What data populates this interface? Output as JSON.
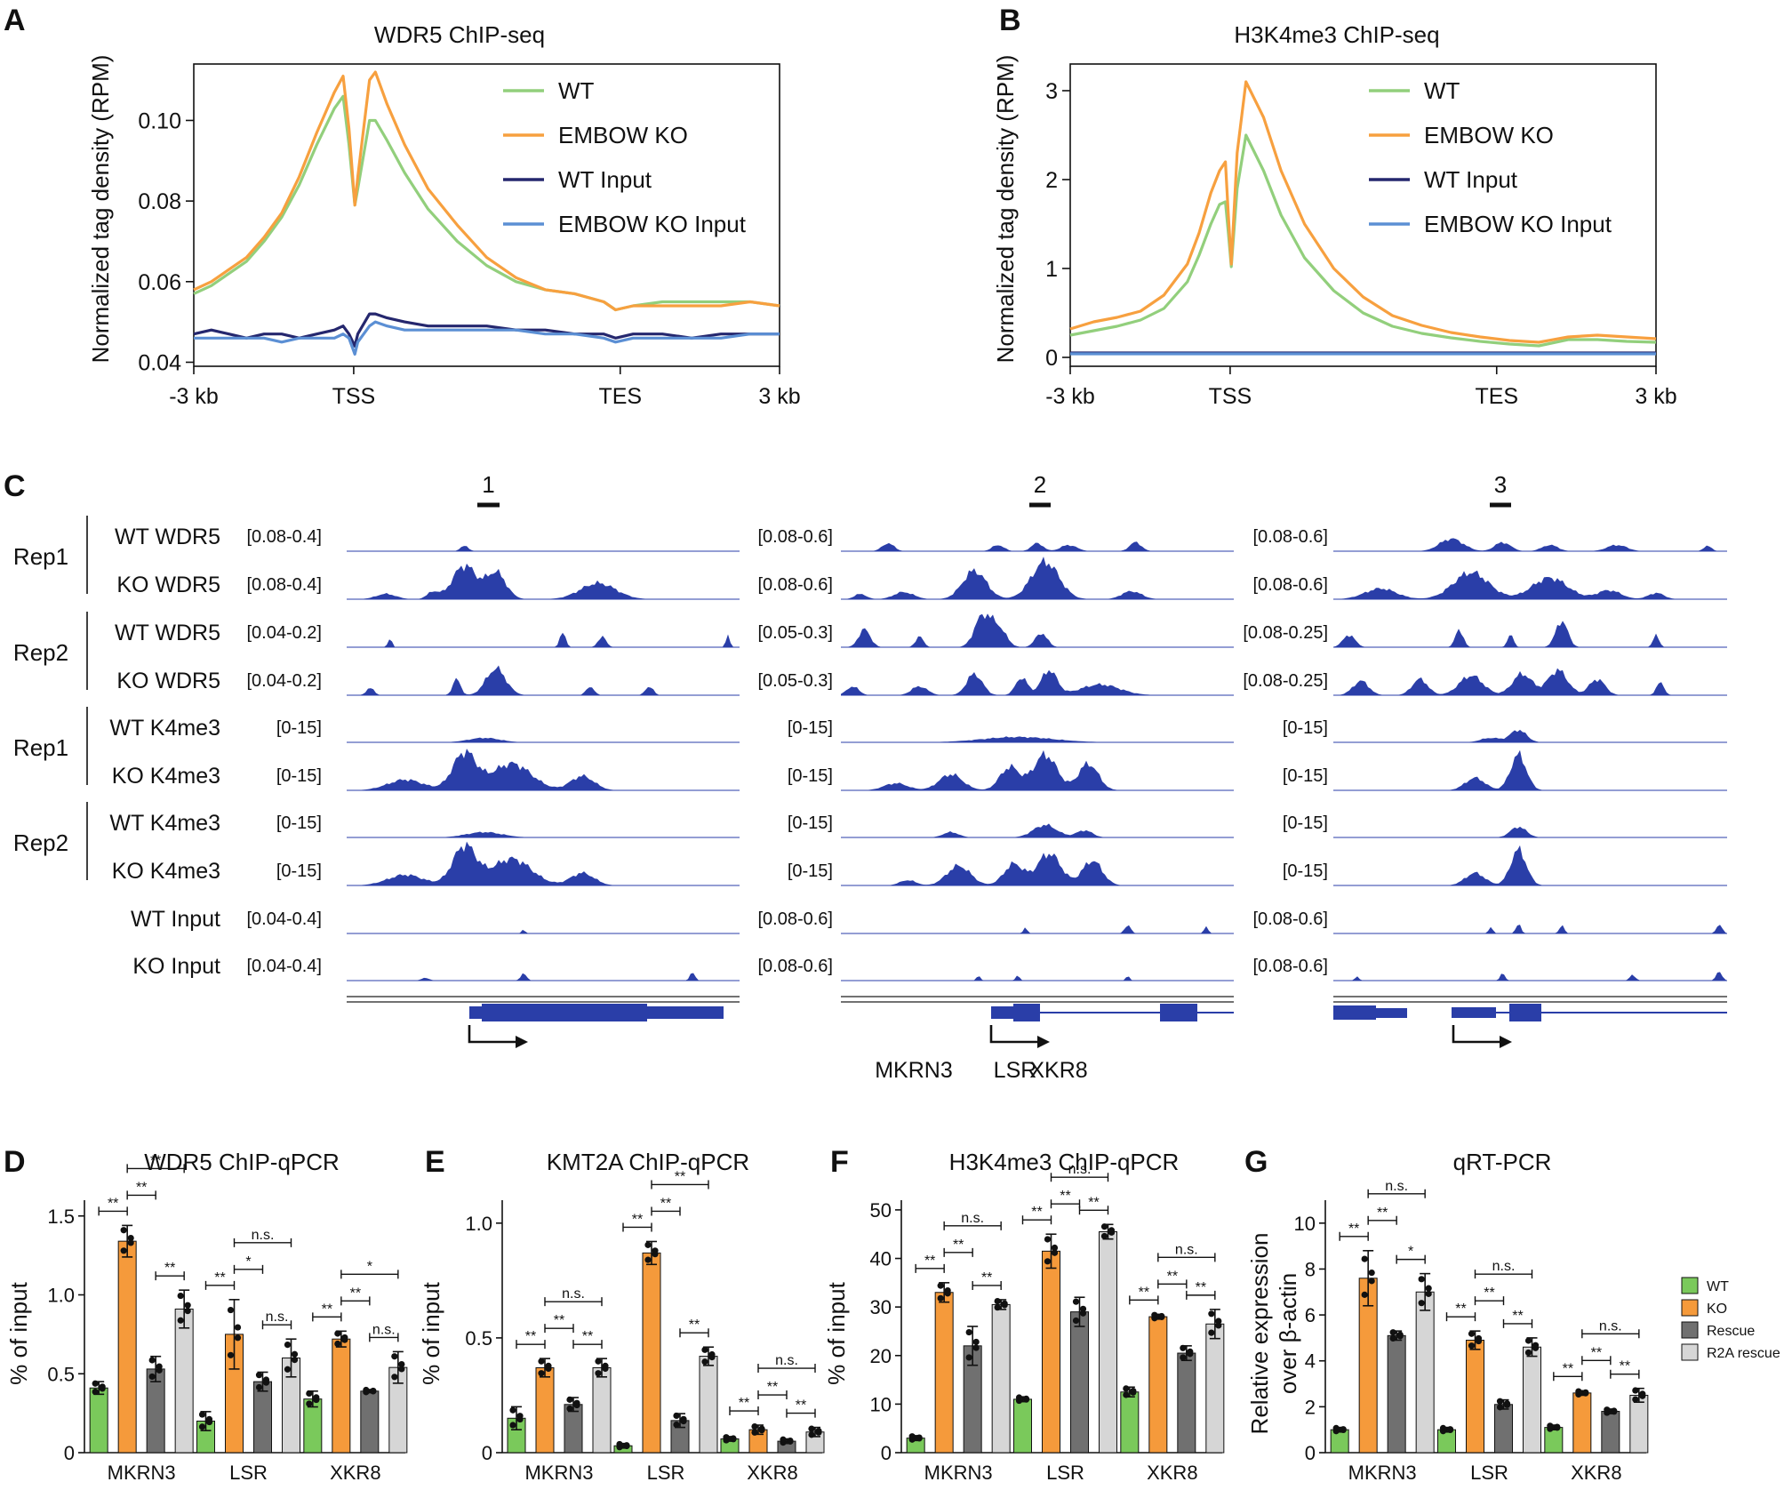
{
  "colors": {
    "wt": "#92cf7c",
    "ko": "#f7a03f",
    "wt_input": "#25276e",
    "ko_input": "#5b8fd4",
    "bar_wt": "#7ac95b",
    "bar_ko": "#f59a3b",
    "bar_rescue": "#707070",
    "bar_r2a": "#d6d6d6",
    "track": "#2a3ea8"
  },
  "panels": {
    "A": {
      "label": "A",
      "title": "WDR5 ChIP-seq",
      "ylabel": "Normalized tag density (RPM)",
      "yticks": [
        "0.04",
        "0.06",
        "0.08",
        "0.10"
      ],
      "xticks": [
        "-3 kb",
        "TSS",
        "TES",
        "3 kb"
      ]
    },
    "B": {
      "label": "B",
      "title": "H3K4me3 ChIP-seq",
      "ylabel": "Normalized tag density (RPM)",
      "yticks": [
        "0",
        "1",
        "2",
        "3"
      ],
      "xticks": [
        "-3 kb",
        "TSS",
        "TES",
        "3 kb"
      ]
    },
    "C": {
      "label": "C"
    },
    "D": {
      "label": "D",
      "title": "WDR5 ChIP-qPCR"
    },
    "E": {
      "label": "E",
      "title": "KMT2A ChIP-qPCR"
    },
    "F": {
      "label": "F",
      "title": "H3K4me3 ChIP-qPCR"
    },
    "G": {
      "label": "G",
      "title": "qRT-PCR"
    }
  },
  "legend_ab": [
    "WT",
    "EMBOW KO",
    "WT Input",
    "EMBOW KO Input"
  ],
  "chart_data": [
    {
      "type": "line",
      "id": "A",
      "title": "WDR5 ChIP-seq",
      "xlabel": "",
      "ylabel": "Normalized tag density (RPM)",
      "x_positions": [
        "-3 kb",
        "TSS",
        "TES",
        "3 kb"
      ],
      "ylim": [
        0.039,
        0.114
      ],
      "x": [
        0,
        0.03,
        0.06,
        0.09,
        0.12,
        0.15,
        0.18,
        0.21,
        0.24,
        0.255,
        0.265,
        0.275,
        0.28,
        0.3,
        0.31,
        0.33,
        0.36,
        0.4,
        0.45,
        0.5,
        0.55,
        0.6,
        0.65,
        0.7,
        0.72,
        0.75,
        0.8,
        0.85,
        0.9,
        0.95,
        1.0
      ],
      "series": [
        {
          "name": "WT",
          "values": [
            0.057,
            0.059,
            0.062,
            0.065,
            0.07,
            0.076,
            0.084,
            0.094,
            0.103,
            0.106,
            0.094,
            0.079,
            0.083,
            0.1,
            0.1,
            0.095,
            0.087,
            0.078,
            0.07,
            0.064,
            0.06,
            0.058,
            0.057,
            0.055,
            0.053,
            0.054,
            0.055,
            0.055,
            0.055,
            0.055,
            0.054
          ]
        },
        {
          "name": "EMBOW KO",
          "values": [
            0.058,
            0.06,
            0.063,
            0.066,
            0.071,
            0.077,
            0.086,
            0.097,
            0.107,
            0.111,
            0.098,
            0.079,
            0.086,
            0.11,
            0.112,
            0.104,
            0.094,
            0.083,
            0.074,
            0.066,
            0.061,
            0.058,
            0.057,
            0.055,
            0.053,
            0.054,
            0.054,
            0.054,
            0.054,
            0.055,
            0.054
          ]
        },
        {
          "name": "WT Input",
          "values": [
            0.047,
            0.048,
            0.047,
            0.046,
            0.047,
            0.047,
            0.046,
            0.047,
            0.048,
            0.049,
            0.047,
            0.044,
            0.047,
            0.052,
            0.052,
            0.051,
            0.05,
            0.049,
            0.049,
            0.049,
            0.048,
            0.048,
            0.047,
            0.047,
            0.046,
            0.047,
            0.047,
            0.046,
            0.047,
            0.047,
            0.047
          ]
        },
        {
          "name": "EMBOW KO Input",
          "values": [
            0.046,
            0.046,
            0.046,
            0.046,
            0.046,
            0.045,
            0.046,
            0.046,
            0.046,
            0.047,
            0.046,
            0.042,
            0.045,
            0.049,
            0.05,
            0.049,
            0.048,
            0.048,
            0.048,
            0.048,
            0.048,
            0.047,
            0.047,
            0.046,
            0.045,
            0.046,
            0.046,
            0.046,
            0.046,
            0.047,
            0.047
          ]
        }
      ]
    },
    {
      "type": "line",
      "id": "B",
      "title": "H3K4me3 ChIP-seq",
      "xlabel": "",
      "ylabel": "Normalized tag density (RPM)",
      "x_positions": [
        "-3 kb",
        "TSS",
        "TES",
        "3 kb"
      ],
      "ylim": [
        -0.1,
        3.3
      ],
      "x": [
        0,
        0.04,
        0.08,
        0.12,
        0.16,
        0.2,
        0.22,
        0.24,
        0.255,
        0.265,
        0.27,
        0.275,
        0.285,
        0.3,
        0.33,
        0.36,
        0.4,
        0.45,
        0.5,
        0.55,
        0.6,
        0.65,
        0.7,
        0.75,
        0.8,
        0.85,
        0.9,
        0.95,
        1.0
      ],
      "series": [
        {
          "name": "WT",
          "values": [
            0.25,
            0.3,
            0.35,
            0.42,
            0.55,
            0.85,
            1.15,
            1.5,
            1.72,
            1.75,
            1.4,
            1.02,
            1.9,
            2.5,
            2.1,
            1.6,
            1.12,
            0.75,
            0.5,
            0.35,
            0.27,
            0.22,
            0.18,
            0.15,
            0.13,
            0.2,
            0.2,
            0.18,
            0.17
          ]
        },
        {
          "name": "EMBOW KO",
          "values": [
            0.32,
            0.4,
            0.45,
            0.52,
            0.7,
            1.05,
            1.4,
            1.85,
            2.1,
            2.2,
            1.6,
            1.05,
            2.3,
            3.1,
            2.7,
            2.1,
            1.5,
            1.0,
            0.68,
            0.47,
            0.36,
            0.28,
            0.23,
            0.19,
            0.17,
            0.23,
            0.25,
            0.23,
            0.21
          ]
        },
        {
          "name": "WT Input",
          "values": [
            0.05,
            0.05,
            0.05,
            0.05,
            0.05,
            0.05,
            0.05,
            0.05,
            0.05,
            0.05,
            0.05,
            0.05,
            0.05,
            0.05,
            0.05,
            0.05,
            0.05,
            0.05,
            0.05,
            0.05,
            0.05,
            0.05,
            0.05,
            0.05,
            0.05,
            0.05,
            0.05,
            0.05,
            0.05
          ]
        },
        {
          "name": "EMBOW KO Input",
          "values": [
            0.04,
            0.04,
            0.04,
            0.04,
            0.04,
            0.04,
            0.04,
            0.04,
            0.04,
            0.04,
            0.04,
            0.04,
            0.04,
            0.04,
            0.04,
            0.04,
            0.04,
            0.04,
            0.04,
            0.04,
            0.04,
            0.04,
            0.04,
            0.04,
            0.04,
            0.04,
            0.04,
            0.04,
            0.04
          ]
        }
      ]
    },
    {
      "type": "genome_tracks",
      "id": "C",
      "region_labels": [
        "1",
        "2",
        "3"
      ],
      "genes": [
        "MKRN3",
        "LSR",
        "XKR8"
      ],
      "rep_labels": [
        "Rep1",
        "Rep2",
        "Rep1",
        "Rep2"
      ],
      "tracks": [
        {
          "name": "WT WDR5",
          "ranges": [
            "[0.08-0.4]",
            "[0.08-0.6]",
            "[0.08-0.6]"
          ]
        },
        {
          "name": "KO WDR5",
          "ranges": [
            "[0.08-0.4]",
            "[0.08-0.6]",
            "[0.08-0.6]"
          ]
        },
        {
          "name": "WT WDR5",
          "ranges": [
            "[0.04-0.2]",
            "[0.05-0.3]",
            "[0.08-0.25]"
          ]
        },
        {
          "name": "KO WDR5",
          "ranges": [
            "[0.04-0.2]",
            "[0.05-0.3]",
            "[0.08-0.25]"
          ]
        },
        {
          "name": "WT K4me3",
          "ranges": [
            "[0-15]",
            "[0-15]",
            "[0-15]"
          ]
        },
        {
          "name": "KO K4me3",
          "ranges": [
            "[0-15]",
            "[0-15]",
            "[0-15]"
          ]
        },
        {
          "name": "WT K4me3",
          "ranges": [
            "[0-15]",
            "[0-15]",
            "[0-15]"
          ]
        },
        {
          "name": "KO K4me3",
          "ranges": [
            "[0-15]",
            "[0-15]",
            "[0-15]"
          ]
        },
        {
          "name": "WT Input",
          "ranges": [
            "[0.04-0.4]",
            "[0.08-0.6]",
            "[0.08-0.6]"
          ]
        },
        {
          "name": "KO Input",
          "ranges": [
            "[0.04-0.4]",
            "[0.08-0.6]",
            "[0.08-0.6]"
          ]
        }
      ]
    },
    {
      "type": "bar",
      "id": "D",
      "title": "WDR5 ChIP-qPCR",
      "xlabel": "",
      "ylabel": "% of input",
      "ylim": [
        0,
        1.6
      ],
      "yticks": [
        "0",
        "0.5",
        "1.0",
        "1.5"
      ],
      "categories": [
        "MKRN3",
        "LSR",
        "XKR8"
      ],
      "series": [
        {
          "name": "WT",
          "values": [
            0.41,
            0.2,
            0.34
          ],
          "errors": [
            0.04,
            0.06,
            0.05
          ]
        },
        {
          "name": "KO",
          "values": [
            1.34,
            0.75,
            0.72
          ],
          "errors": [
            0.1,
            0.22,
            0.05
          ]
        },
        {
          "name": "Rescue",
          "values": [
            0.53,
            0.45,
            0.39
          ],
          "errors": [
            0.08,
            0.06,
            0.01
          ]
        },
        {
          "name": "R2A rescue",
          "values": [
            0.91,
            0.6,
            0.54
          ],
          "errors": [
            0.12,
            0.12,
            0.1
          ]
        }
      ],
      "significance": [
        [
          "**",
          "**",
          "**",
          "**"
        ],
        [
          "**",
          "*",
          "n.s.",
          "n.s."
        ],
        [
          "**",
          "**",
          "n.s.",
          "*"
        ]
      ]
    },
    {
      "type": "bar",
      "id": "E",
      "title": "KMT2A ChIP-qPCR",
      "xlabel": "",
      "ylabel": "% of input",
      "ylim": [
        0,
        1.1
      ],
      "yticks": [
        "0",
        "0.5",
        "1.0"
      ],
      "categories": [
        "MKRN3",
        "LSR",
        "XKR8"
      ],
      "series": [
        {
          "name": "WT",
          "values": [
            0.15,
            0.03,
            0.06
          ],
          "errors": [
            0.05,
            0.01,
            0.01
          ]
        },
        {
          "name": "KO",
          "values": [
            0.37,
            0.87,
            0.1
          ],
          "errors": [
            0.04,
            0.05,
            0.02
          ]
        },
        {
          "name": "Rescue",
          "values": [
            0.21,
            0.14,
            0.05
          ],
          "errors": [
            0.03,
            0.03,
            0.01
          ]
        },
        {
          "name": "R2A rescue",
          "values": [
            0.37,
            0.42,
            0.09
          ],
          "errors": [
            0.04,
            0.04,
            0.02
          ]
        }
      ],
      "significance": [
        [
          "**",
          "**",
          "**",
          "n.s."
        ],
        [
          "**",
          "**",
          "**",
          "**"
        ],
        [
          "**",
          "**",
          "**",
          "n.s."
        ]
      ]
    },
    {
      "type": "bar",
      "id": "F",
      "title": "H3K4me3 ChIP-qPCR",
      "xlabel": "",
      "ylabel": "% of input",
      "ylim": [
        0,
        52
      ],
      "yticks": [
        "0",
        "10",
        "20",
        "30",
        "40",
        "50"
      ],
      "categories": [
        "MKRN3",
        "LSR",
        "XKR8"
      ],
      "series": [
        {
          "name": "WT",
          "values": [
            3,
            11,
            12.5
          ],
          "errors": [
            0.5,
            0.5,
            1
          ]
        },
        {
          "name": "KO",
          "values": [
            33,
            41.5,
            28
          ],
          "errors": [
            2,
            3.5,
            0.5
          ]
        },
        {
          "name": "Rescue",
          "values": [
            22,
            29,
            20.5
          ],
          "errors": [
            4,
            3,
            1.5
          ]
        },
        {
          "name": "R2A rescue",
          "values": [
            30.5,
            45.5,
            26.5
          ],
          "errors": [
            1,
            1.5,
            3
          ]
        }
      ],
      "significance": [
        [
          "**",
          "**",
          "**",
          "n.s."
        ],
        [
          "**",
          "**",
          "**",
          "n.s."
        ],
        [
          "**",
          "**",
          "**",
          "n.s."
        ]
      ]
    },
    {
      "type": "bar",
      "id": "G",
      "title": "qRT-PCR",
      "xlabel": "",
      "ylabel": "Relative expression over β-actin",
      "ylabel_lines": [
        "Relative expression",
        "over β-actin"
      ],
      "ylim": [
        0,
        11
      ],
      "yticks": [
        "0",
        "2",
        "4",
        "6",
        "8",
        "10"
      ],
      "categories": [
        "MKRN3",
        "LSR",
        "XKR8"
      ],
      "series": [
        {
          "name": "WT",
          "values": [
            1,
            1,
            1.1
          ],
          "errors": [
            0.1,
            0.1,
            0.1
          ]
        },
        {
          "name": "KO",
          "values": [
            7.6,
            4.9,
            2.6
          ],
          "errors": [
            1.2,
            0.4,
            0.1
          ]
        },
        {
          "name": "Rescue",
          "values": [
            5.1,
            2.1,
            1.8
          ],
          "errors": [
            0.2,
            0.2,
            0.1
          ]
        },
        {
          "name": "R2A rescue",
          "values": [
            7,
            4.6,
            2.5
          ],
          "errors": [
            0.8,
            0.4,
            0.3
          ]
        }
      ],
      "significance": [
        [
          "**",
          "**",
          "*",
          "n.s."
        ],
        [
          "**",
          "**",
          "**",
          "n.s."
        ],
        [
          "**",
          "**",
          "**",
          "n.s."
        ]
      ],
      "legend": [
        "WT",
        "KO",
        "Rescue",
        "R2A rescue"
      ]
    }
  ]
}
